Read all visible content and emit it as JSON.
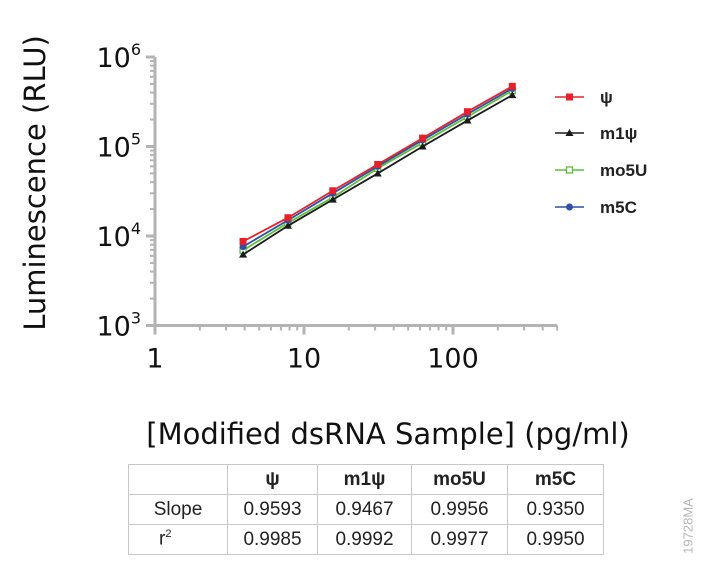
{
  "chart_data": {
    "type": "line",
    "title": "",
    "xlabel": "[Modified dsRNA Sample] (pg/ml)",
    "ylabel": "Luminescence (RLU)",
    "xscale": "log",
    "yscale": "log",
    "xlim": [
      1,
      500
    ],
    "ylim": [
      1000,
      1000000
    ],
    "x_tick_labels": [
      "1",
      "10",
      "100"
    ],
    "y_tick_labels": [
      {
        "base": "10",
        "exp": "3"
      },
      {
        "base": "10",
        "exp": "4"
      },
      {
        "base": "10",
        "exp": "5"
      },
      {
        "base": "10",
        "exp": "6"
      }
    ],
    "grid": false,
    "legend_position": "right",
    "x": [
      3.9,
      7.8,
      15.6,
      31.25,
      62.5,
      125,
      250
    ],
    "series": [
      {
        "name": "ψ",
        "legend_label": "ψ",
        "color": "#e8202a",
        "marker": "square",
        "values": [
          8700,
          16000,
          32000,
          63000,
          124000,
          245000,
          470000
        ]
      },
      {
        "name": "m1ψ",
        "legend_label": "m1ψ",
        "color": "#1a1a1a",
        "marker": "triangle",
        "values": [
          6200,
          13000,
          25500,
          50000,
          100000,
          195000,
          375000
        ]
      },
      {
        "name": "mo5U",
        "legend_label": "mo5U",
        "color": "#5cbf3a",
        "marker": "open-square",
        "values": [
          6900,
          14000,
          27000,
          57000,
          110000,
          215000,
          420000
        ]
      },
      {
        "name": "m5C",
        "legend_label": "m5C",
        "color": "#2f4fa8",
        "marker": "circle",
        "values": [
          7600,
          15000,
          30000,
          60000,
          118000,
          230000,
          445000
        ]
      }
    ]
  },
  "table": {
    "headers": [
      "",
      "ψ",
      "m1ψ",
      "mo5U",
      "m5C"
    ],
    "rows": [
      {
        "label": "Slope",
        "values": [
          "0.9593",
          "0.9467",
          "0.9956",
          "0.9350"
        ]
      },
      {
        "label": "r",
        "label_sup": "2",
        "values": [
          "0.9985",
          "0.9992",
          "0.9977",
          "0.9950"
        ]
      }
    ]
  },
  "figure_code": "19728MA"
}
